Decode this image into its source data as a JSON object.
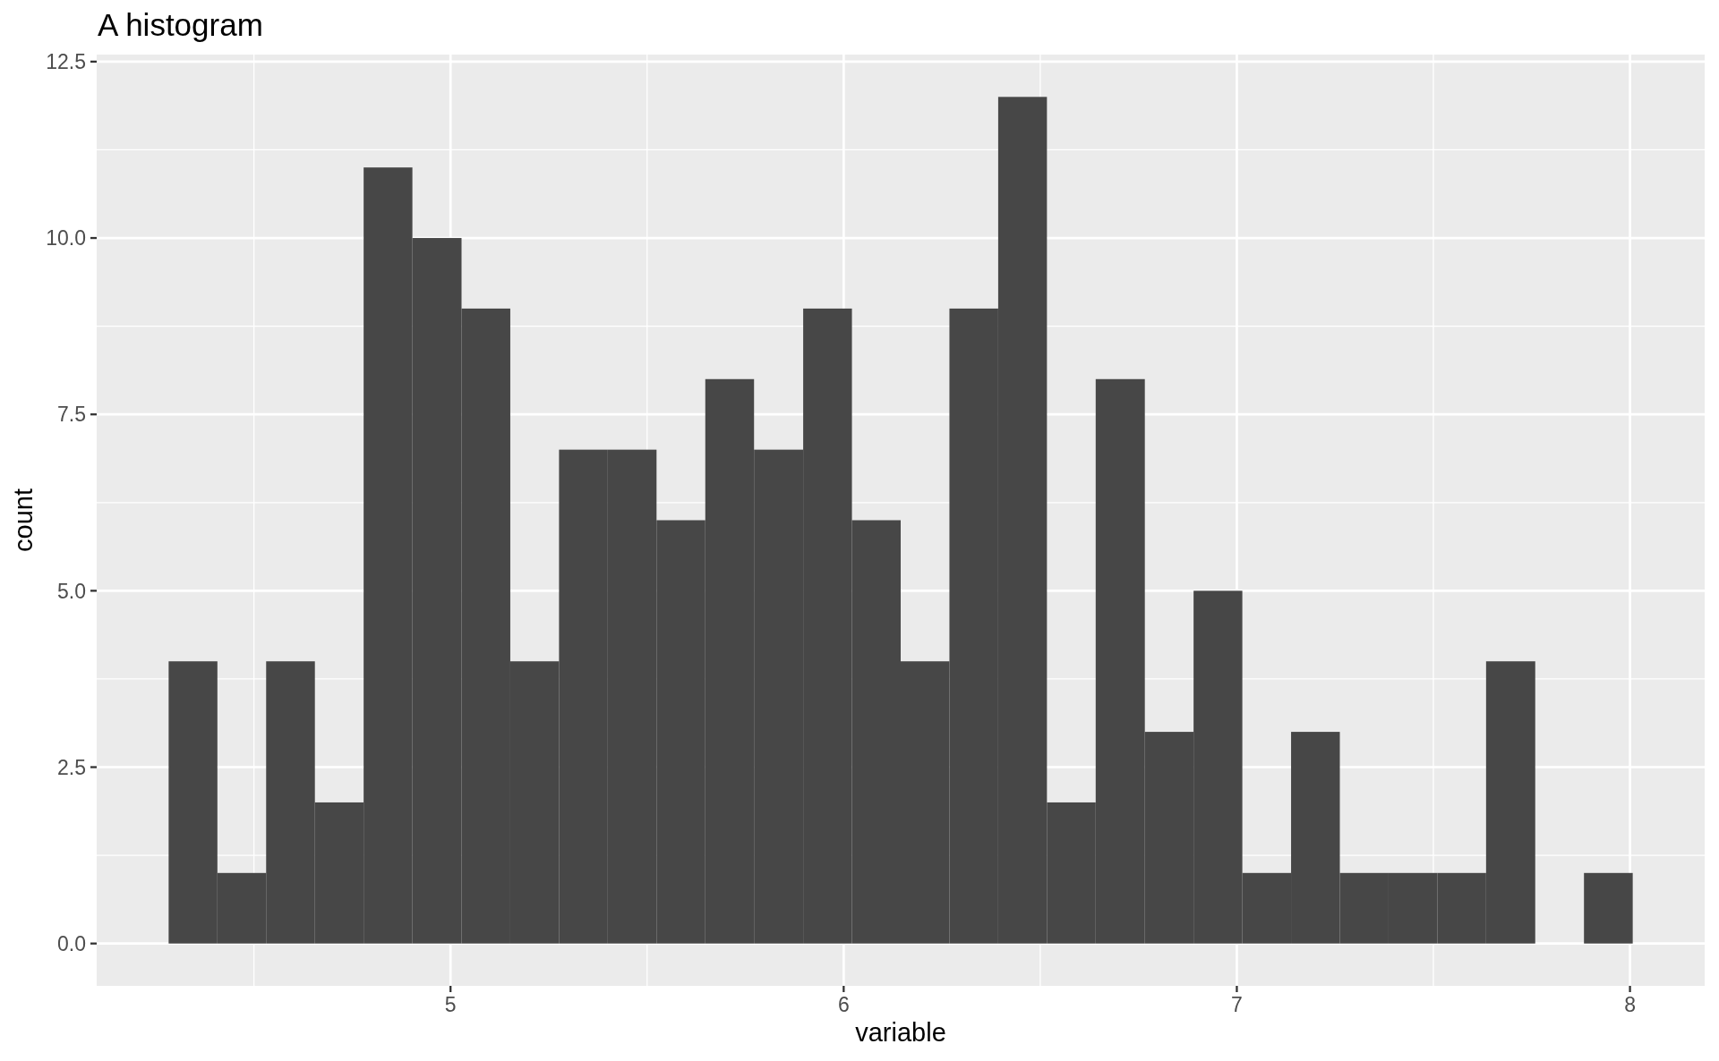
{
  "chart_data": {
    "type": "histogram",
    "title": "A histogram",
    "xlabel": "variable",
    "ylabel": "count",
    "bins": [
      4.283,
      4.407,
      4.531,
      4.655,
      4.779,
      4.903,
      5.028,
      5.152,
      5.276,
      5.4,
      5.524,
      5.648,
      5.772,
      5.897,
      6.021,
      6.145,
      6.269,
      6.393,
      6.517,
      6.641,
      6.766,
      6.89,
      7.014,
      7.138,
      7.262,
      7.386,
      7.51,
      7.634,
      7.759,
      7.883,
      8.007
    ],
    "values": [
      4,
      1,
      4,
      2,
      11,
      10,
      9,
      4,
      7,
      7,
      6,
      8,
      7,
      9,
      6,
      4,
      9,
      12,
      2,
      8,
      3,
      5,
      1,
      3,
      1,
      1,
      1,
      4,
      0,
      1
    ],
    "color": "#474747",
    "xlim": [
      4.1,
      8.19
    ],
    "xticks": [
      5,
      6,
      7,
      8
    ],
    "ylim": [
      -0.6,
      12.6
    ],
    "yticks": [
      {
        "value": 0,
        "label": "0.0"
      },
      2.5,
      {
        "value": 5,
        "label": "5.0"
      },
      7.5,
      {
        "value": 10,
        "label": "10.0"
      },
      12.5
    ],
    "grid": true
  }
}
